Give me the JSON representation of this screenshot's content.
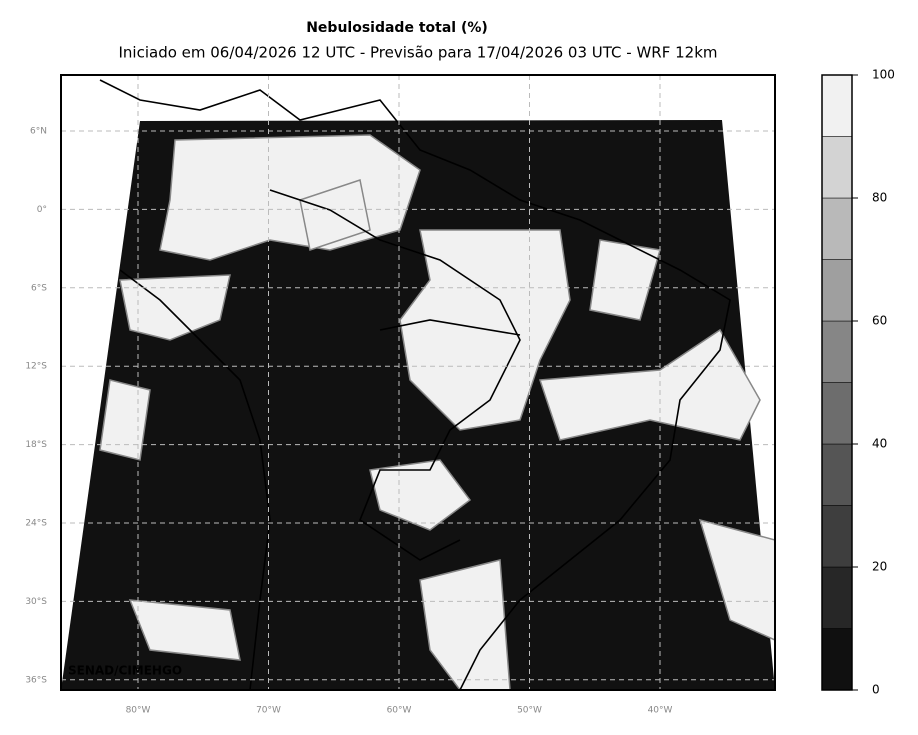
{
  "map": {
    "title": "Nebulosidade total (%)",
    "subtitle": "Iniciado em 06/04/2026 12 UTC - Previsão para 17/04/2026 03 UTC - WRF 12km",
    "lat_labels": [
      "6°N",
      "0°",
      "6°S",
      "12°S",
      "18°S",
      "24°S",
      "30°S",
      "36°S"
    ],
    "lon_labels": [
      "80°W",
      "70°W",
      "60°W",
      "50°W",
      "40°W"
    ],
    "credit": "SENAD/CIMEHGO",
    "colorbar": {
      "lim": [
        0,
        100
      ],
      "ticks": [
        0,
        20,
        40,
        60,
        80,
        100
      ],
      "colors": [
        "#101010",
        "#272727",
        "#3e3e3e",
        "#555555",
        "#6d6d6d",
        "#868686",
        "#9f9f9f",
        "#b9b9b9",
        "#d3d3d3",
        "#f1f1f1"
      ]
    }
  }
}
